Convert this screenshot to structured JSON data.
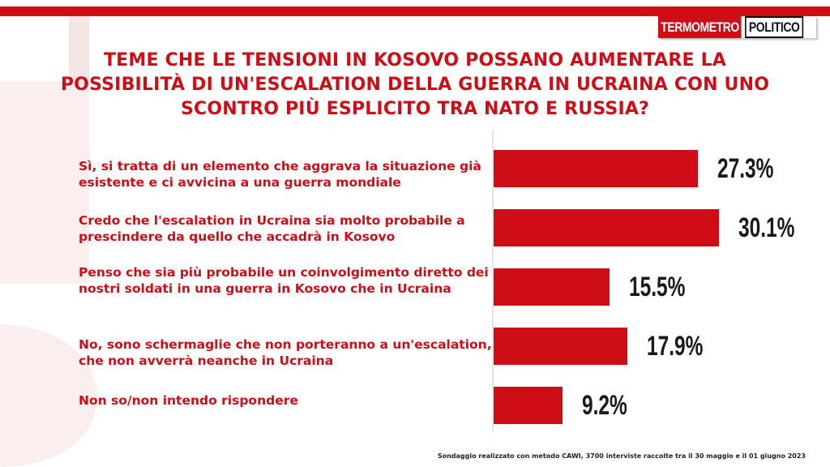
{
  "brand": {
    "logo_left": "TERMOMETRO",
    "logo_right": "POLITICO",
    "accent_color": "#cf0d16"
  },
  "footnote": "Sondaggio realizzato con metodo CAWI, 3700 interviste raccolte tra il 30 maggio e il 01 giugno 2023",
  "chart_data": {
    "type": "bar",
    "orientation": "horizontal",
    "title": "TEME CHE LE TENSIONI IN KOSOVO POSSANO AUMENTARE LA POSSIBILITÀ DI UN'ESCALATION DELLA GUERRA IN UCRAINA CON UNO SCONTRO PIÙ ESPLICITO TRA NATO E RUSSIA?",
    "categories": [
      "Sì, si tratta di un elemento che aggrava la situazione già  esistente e ci avvicina a una guerra mondiale",
      "Credo che l'escalation in Ucraina sia molto probabile a prescindere da quello che accadrà  in Kosovo",
      "Penso che sia più probabile un coinvolgimento diretto dei nostri soldati in una guerra in Kosovo che in Ucraina",
      "No, sono schermaglie che non porteranno a un'escalation, che non avverrà  neanche in Ucraina",
      "Non so/non intendo rispondere"
    ],
    "values": [
      27.3,
      30.1,
      15.5,
      17.9,
      9.2
    ],
    "value_labels": [
      "27.3%",
      "30.1%",
      "15.5%",
      "17.9%",
      "9.2%"
    ],
    "xlim": [
      0,
      30.1
    ],
    "grid": false,
    "legend": "none",
    "bar_color": "#cf0d16"
  }
}
